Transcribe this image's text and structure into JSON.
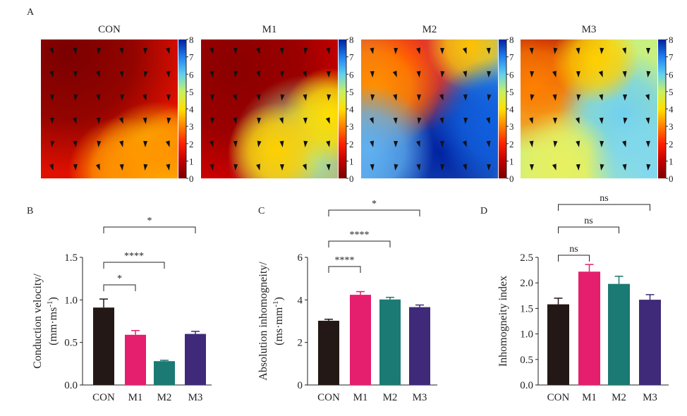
{
  "panels": {
    "a_letter": "A",
    "b_letter": "B",
    "c_letter": "C",
    "d_letter": "D"
  },
  "heatmaps": {
    "titles": [
      "CON",
      "M1",
      "M2",
      "M3"
    ],
    "colorbar_ticks": [
      "8",
      "7",
      "6",
      "5",
      "4",
      "3",
      "2",
      "1",
      "0"
    ],
    "colorscale": [
      "#7a0000",
      "#c00000",
      "#ff2000",
      "#ff8000",
      "#ffe000",
      "#c8f060",
      "#60d0f0",
      "#2080f0",
      "#0020a0"
    ]
  },
  "chart_data": [
    {
      "type": "bar",
      "panel": "B",
      "categories": [
        "CON",
        "M1",
        "M2",
        "M3"
      ],
      "values": [
        0.91,
        0.59,
        0.28,
        0.6
      ],
      "errors": [
        0.1,
        0.05,
        0.01,
        0.03
      ],
      "colors": [
        "#231815",
        "#e61e6e",
        "#1b7a73",
        "#3e2a78"
      ],
      "ylabel_line1": "Conduction velocity/",
      "ylabel_line2": "(mm·ms",
      "ylabel_sup": "-1",
      "ylabel_end": ")",
      "ylim": [
        0,
        1.5
      ],
      "yticks": [
        "0.0",
        "0.5",
        "1.0",
        "1.5"
      ],
      "sig": [
        {
          "from": 0,
          "to": 1,
          "label": "*"
        },
        {
          "from": 0,
          "to": 2,
          "label": "****"
        },
        {
          "from": 0,
          "to": 3,
          "label": "*"
        }
      ]
    },
    {
      "type": "bar",
      "panel": "C",
      "categories": [
        "CON",
        "M1",
        "M2",
        "M3"
      ],
      "values": [
        3.02,
        4.24,
        4.02,
        3.66
      ],
      "errors": [
        0.07,
        0.15,
        0.1,
        0.1
      ],
      "colors": [
        "#231815",
        "#e61e6e",
        "#1b7a73",
        "#3e2a78"
      ],
      "ylabel_line1": "Absolution inhomogneity/",
      "ylabel_line2": "(ms·mm",
      "ylabel_sup": "-1",
      "ylabel_end": ")",
      "ylim": [
        0,
        6
      ],
      "yticks": [
        "0",
        "2",
        "4",
        "6"
      ],
      "sig": [
        {
          "from": 0,
          "to": 1,
          "label": "****"
        },
        {
          "from": 0,
          "to": 2,
          "label": "****"
        },
        {
          "from": 0,
          "to": 3,
          "label": "*"
        }
      ]
    },
    {
      "type": "bar",
      "panel": "D",
      "categories": [
        "CON",
        "M1",
        "M2",
        "M3"
      ],
      "values": [
        1.58,
        2.22,
        1.98,
        1.67
      ],
      "errors": [
        0.12,
        0.14,
        0.15,
        0.1
      ],
      "colors": [
        "#231815",
        "#e61e6e",
        "#1b7a73",
        "#3e2a78"
      ],
      "ylabel_line1": "Inhomogneity index",
      "ylabel_line2": "",
      "ylabel_sup": "",
      "ylabel_end": "",
      "ylim": [
        0,
        2.5
      ],
      "yticks": [
        "0.0",
        "0.5",
        "1.0",
        "1.5",
        "2.0",
        "2.5"
      ],
      "sig": [
        {
          "from": 0,
          "to": 1,
          "label": "ns"
        },
        {
          "from": 0,
          "to": 2,
          "label": "ns"
        },
        {
          "from": 0,
          "to": 3,
          "label": "ns"
        }
      ]
    }
  ]
}
